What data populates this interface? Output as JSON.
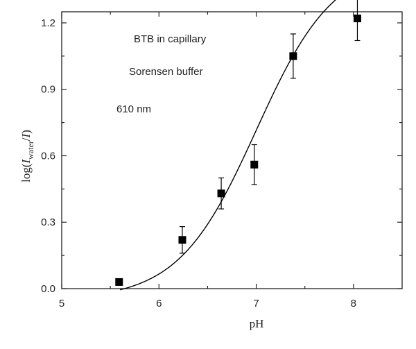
{
  "chart_data": {
    "type": "scatter",
    "title": "",
    "xlabel": "pH",
    "ylabel": {
      "prefix": "log(",
      "main": "I",
      "subscript": "water",
      "suffix_slash": "/",
      "main2": "I",
      "close": ")"
    },
    "xlim": [
      5,
      8.5
    ],
    "ylim": [
      0,
      1.25
    ],
    "xticks": [
      5,
      6,
      7,
      8
    ],
    "xtick_labels": [
      "5",
      "6",
      "7",
      "8"
    ],
    "yticks": [
      0,
      0.3,
      0.6,
      0.9,
      1.2
    ],
    "ytick_labels": [
      "0.0",
      "0.3",
      "0.6",
      "0.9",
      "1.2"
    ],
    "grid": false,
    "annotations": [
      "BTB in capillary",
      "Sorensen buffer",
      "610 nm"
    ],
    "series": [
      {
        "marker": "square",
        "color": "#000000",
        "x": [
          5.59,
          6.24,
          6.64,
          6.98,
          7.38,
          8.04
        ],
        "y": [
          0.03,
          0.22,
          0.43,
          0.56,
          1.05,
          1.22
        ],
        "error": [
          0.0,
          0.06,
          0.07,
          0.09,
          0.1,
          0.1
        ]
      }
    ],
    "fit_curve": {
      "type": "sigmoid",
      "color": "#000000",
      "x_start": 5.6,
      "x_end": 8.04,
      "bottom": -0.05,
      "top": 1.48,
      "x0": 7.0,
      "width": 0.4
    }
  }
}
